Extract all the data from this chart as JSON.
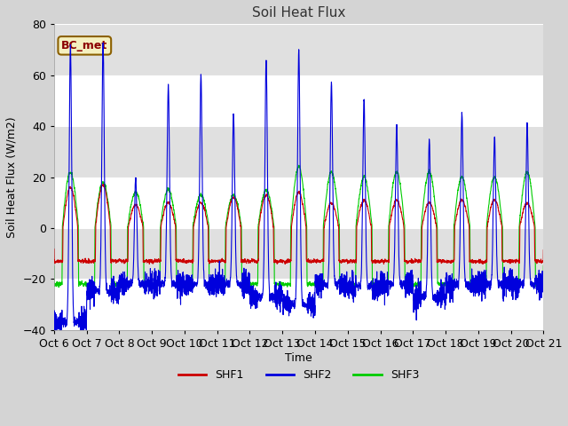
{
  "title": "Soil Heat Flux",
  "xlabel": "Time",
  "ylabel": "Soil Heat Flux (W/m2)",
  "ylim": [
    -40,
    80
  ],
  "colors": {
    "SHF1": "#cc0000",
    "SHF2": "#0000dd",
    "SHF3": "#00cc00"
  },
  "legend_label": "BC_met",
  "x_tick_labels": [
    "Oct 6",
    "Oct 7",
    "Oct 8",
    "Oct 9",
    "Oct 10",
    "Oct 11",
    "Oct 12",
    "Oct 13",
    "Oct 14",
    "Oct 15",
    "Oct 16",
    "Oct 17",
    "Oct 18",
    "Oct 19",
    "Oct 20",
    "Oct 21"
  ],
  "n_days": 15,
  "fig_width": 6.4,
  "fig_height": 4.8,
  "dpi": 100,
  "bg_color": "#d4d4d4",
  "plot_bg_color": "#e8e8e8",
  "band_color_light": "#ffffff",
  "band_color_dark": "#e0e0e0",
  "grid_color": "#ffffff",
  "yticks": [
    -40,
    -20,
    0,
    20,
    40,
    60,
    80
  ]
}
